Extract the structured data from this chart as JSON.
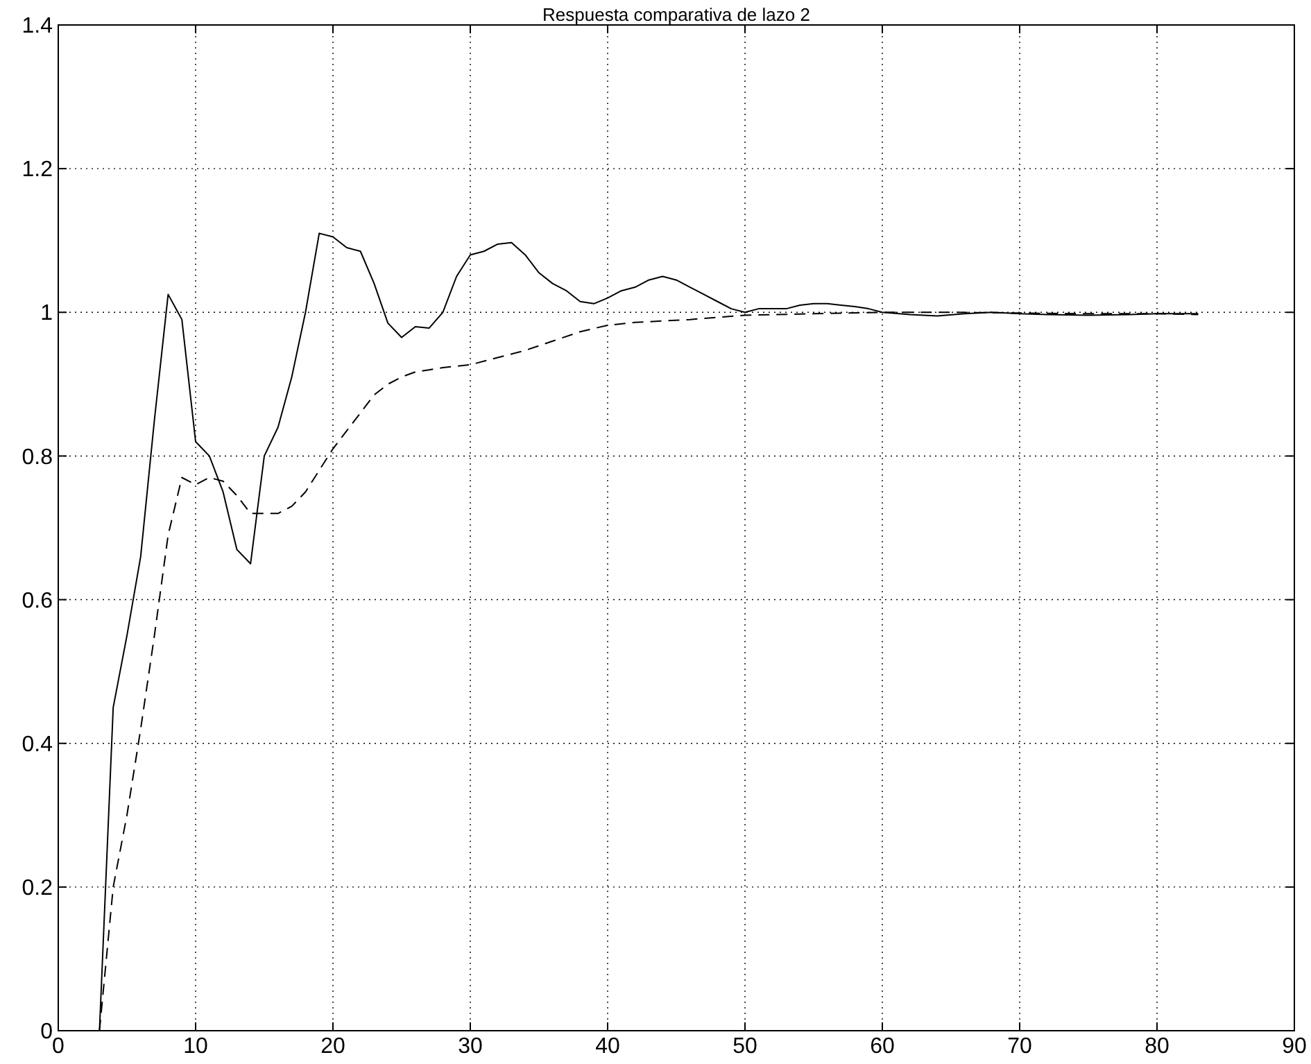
{
  "chart_data": {
    "type": "line",
    "title": "Respuesta comparativa de lazo 2",
    "xlim": [
      0,
      90
    ],
    "xticks": [
      0,
      10,
      20,
      30,
      40,
      50,
      60,
      70,
      80,
      90
    ],
    "ylim": [
      0,
      1.4
    ],
    "yticks": [
      0,
      0.2,
      0.4,
      0.6,
      0.8,
      1,
      1.2,
      1.4
    ],
    "grid": true,
    "series": [
      {
        "color": "#000000",
        "line_style": "solid",
        "x": [
          3,
          4,
          5,
          6,
          7,
          8,
          9,
          10,
          11,
          12,
          13,
          14,
          15,
          16,
          17,
          18,
          19,
          20,
          21,
          22,
          23,
          24,
          25,
          26,
          27,
          28,
          29,
          30,
          31,
          32,
          33,
          34,
          35,
          36,
          37,
          38,
          39,
          40,
          41,
          42,
          43,
          44,
          45,
          46,
          47,
          48,
          49,
          50,
          51,
          52,
          53,
          54,
          55,
          56,
          57,
          58,
          59,
          60,
          62,
          64,
          66,
          68,
          70,
          72,
          75,
          78,
          80,
          83
        ],
        "values": [
          0,
          0.45,
          0.55,
          0.66,
          0.85,
          1.025,
          0.99,
          0.82,
          0.8,
          0.75,
          0.67,
          0.65,
          0.8,
          0.84,
          0.91,
          1.0,
          1.11,
          1.105,
          1.09,
          1.085,
          1.04,
          0.985,
          0.965,
          0.98,
          0.978,
          1.0,
          1.05,
          1.08,
          1.085,
          1.095,
          1.097,
          1.08,
          1.055,
          1.04,
          1.03,
          1.015,
          1.012,
          1.02,
          1.03,
          1.035,
          1.045,
          1.05,
          1.045,
          1.035,
          1.025,
          1.015,
          1.005,
          1.0,
          1.005,
          1.005,
          1.005,
          1.01,
          1.012,
          1.012,
          1.01,
          1.008,
          1.005,
          1.0,
          0.997,
          0.995,
          0.998,
          1.0,
          0.998,
          0.997,
          0.996,
          0.997,
          0.998,
          0.998
        ]
      },
      {
        "color": "#000000",
        "line_style": "dashed",
        "x": [
          3,
          4,
          5,
          6,
          7,
          8,
          9,
          10,
          11,
          12,
          13,
          14,
          15,
          16,
          17,
          18,
          19,
          20,
          21,
          22,
          23,
          24,
          25,
          26,
          27,
          28,
          30,
          32,
          34,
          36,
          38,
          40,
          42,
          44,
          46,
          48,
          50,
          55,
          60,
          65,
          70,
          75,
          80,
          83
        ],
        "values": [
          0,
          0.2,
          0.3,
          0.42,
          0.55,
          0.69,
          0.77,
          0.76,
          0.77,
          0.765,
          0.745,
          0.72,
          0.72,
          0.72,
          0.73,
          0.75,
          0.78,
          0.81,
          0.835,
          0.86,
          0.885,
          0.9,
          0.91,
          0.917,
          0.92,
          0.923,
          0.927,
          0.937,
          0.947,
          0.96,
          0.973,
          0.982,
          0.986,
          0.988,
          0.99,
          0.993,
          0.996,
          0.998,
          1.0,
          1.0,
          0.999,
          0.998,
          0.998,
          0.997
        ]
      }
    ]
  }
}
